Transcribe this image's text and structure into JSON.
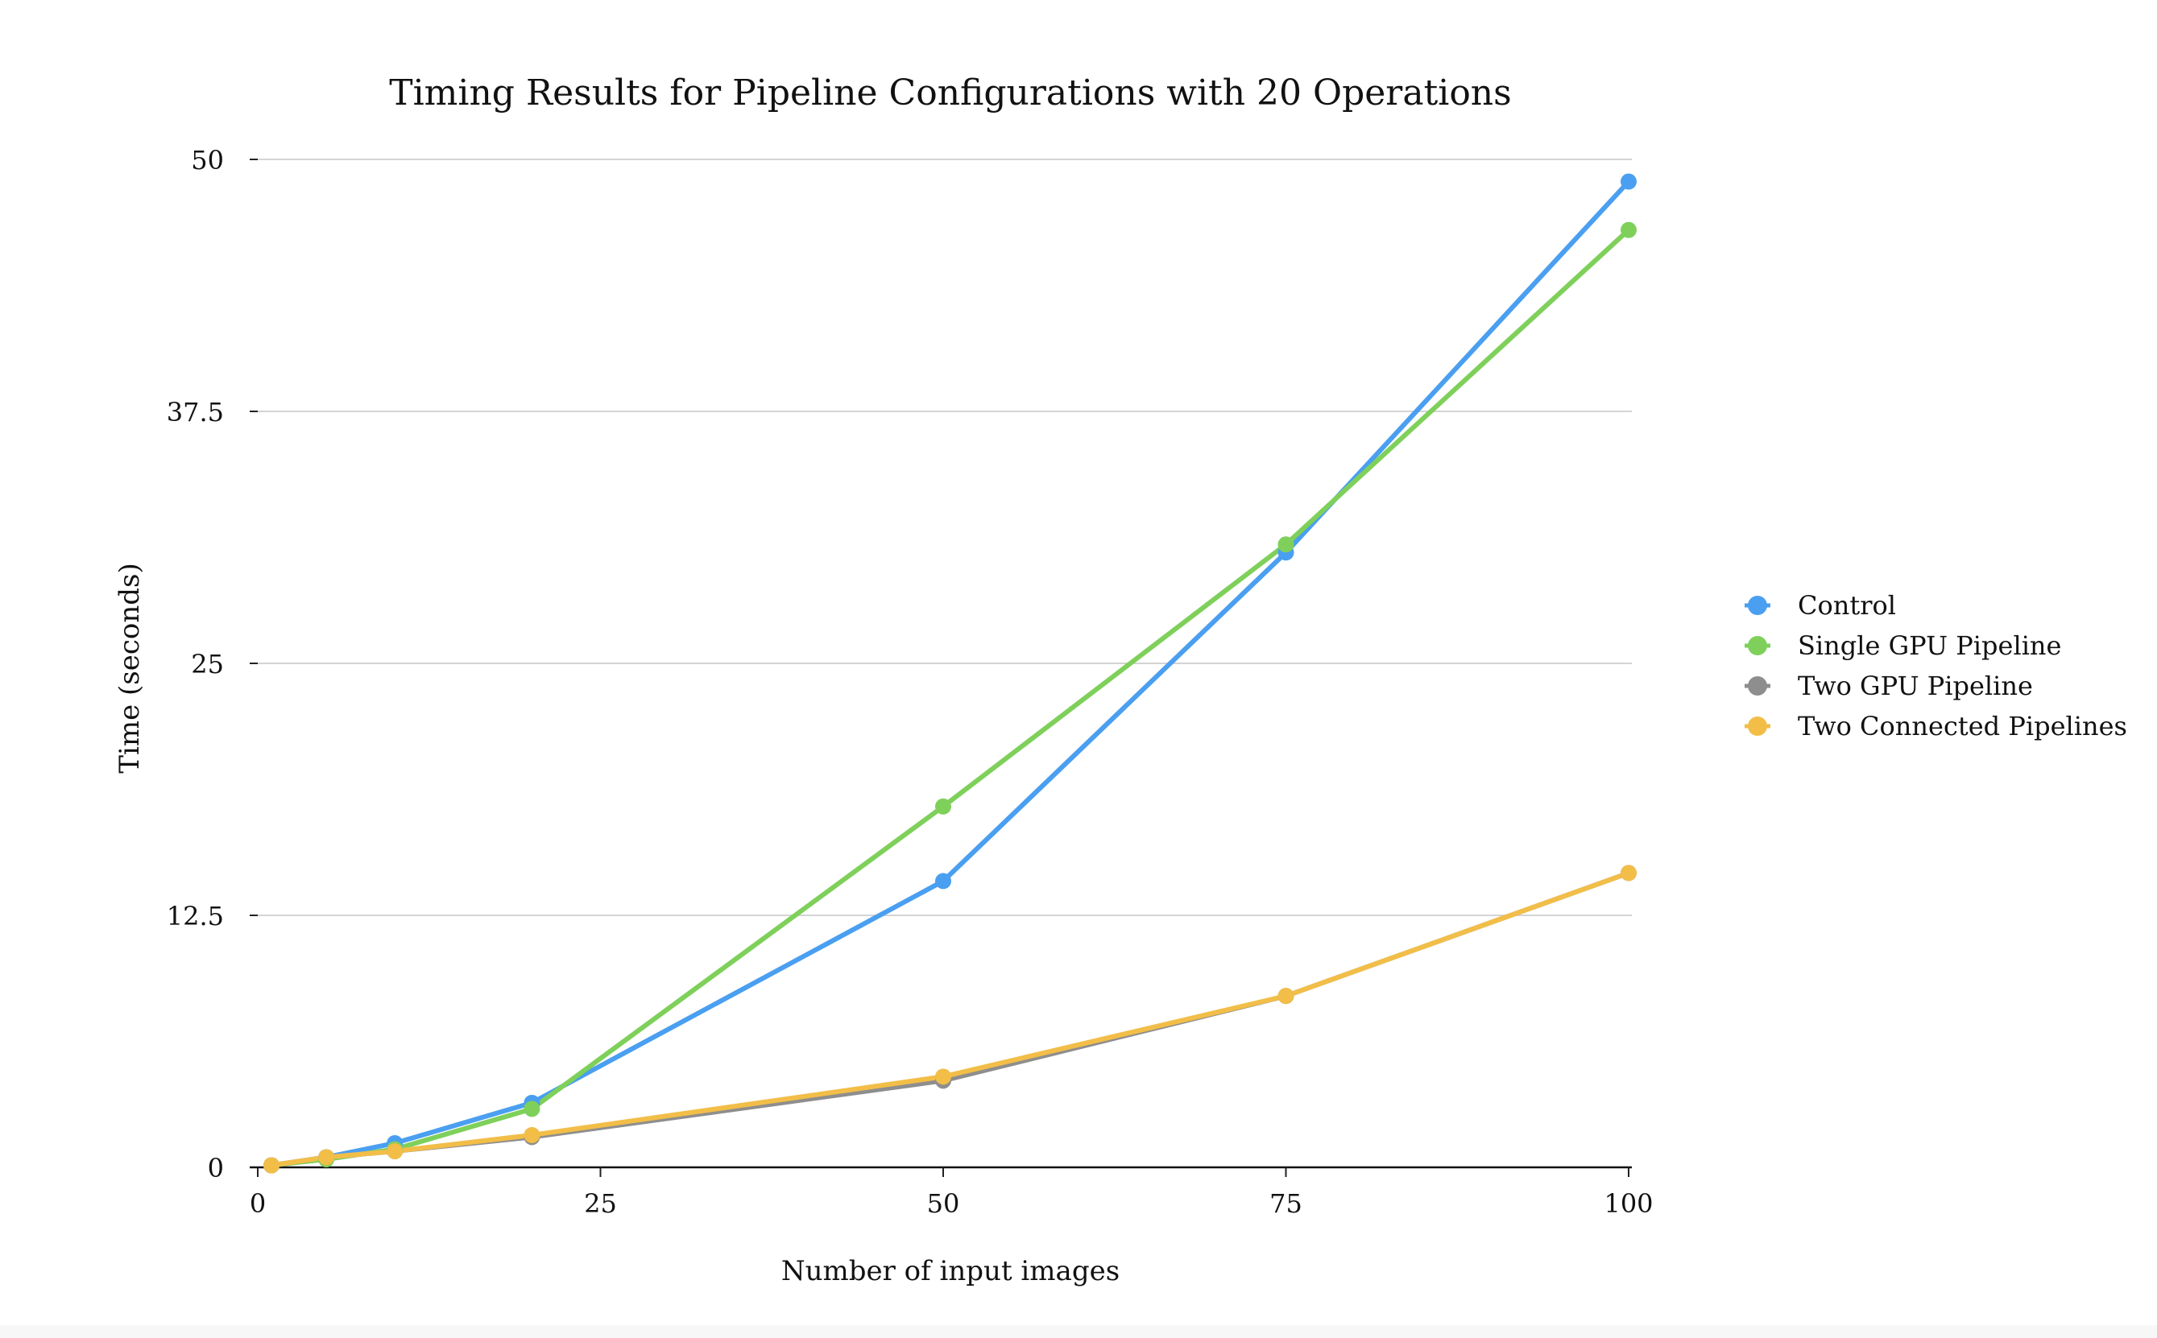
{
  "chart_data": {
    "type": "line",
    "title": "Timing Results for Pipeline Configurations with 20 Operations",
    "xlabel": "Number of input images",
    "ylabel": "Time (seconds)",
    "xlim": [
      0,
      100
    ],
    "ylim": [
      0,
      50
    ],
    "xticks": [
      0,
      25,
      50,
      75,
      100
    ],
    "xtick_labels": [
      "0",
      "25",
      "50",
      "75",
      "100"
    ],
    "yticks": [
      0,
      12.5,
      25,
      37.5,
      50
    ],
    "ytick_labels": [
      "0",
      "12.5",
      "25",
      "37.5",
      "50"
    ],
    "grid": "horizontal",
    "legend_position": "right",
    "x": [
      1,
      5,
      10,
      20,
      50,
      75,
      100
    ],
    "series": [
      {
        "name": "Control",
        "color": "#4a9ff0",
        "values": [
          0.1,
          0.5,
          1.2,
          3.2,
          14.2,
          30.5,
          48.9
        ]
      },
      {
        "name": "Single GPU Pipeline",
        "color": "#7ed05a",
        "values": [
          0.1,
          0.4,
          0.9,
          2.9,
          17.9,
          30.9,
          46.5
        ]
      },
      {
        "name": "Two GPU Pipeline",
        "color": "#8e8e8e",
        "values": [
          0.1,
          0.5,
          0.8,
          1.5,
          4.3,
          8.5,
          14.6
        ]
      },
      {
        "name": "Two Connected Pipelines",
        "color": "#f2be48",
        "values": [
          0.1,
          0.5,
          0.8,
          1.6,
          4.5,
          8.5,
          14.6
        ]
      }
    ]
  }
}
